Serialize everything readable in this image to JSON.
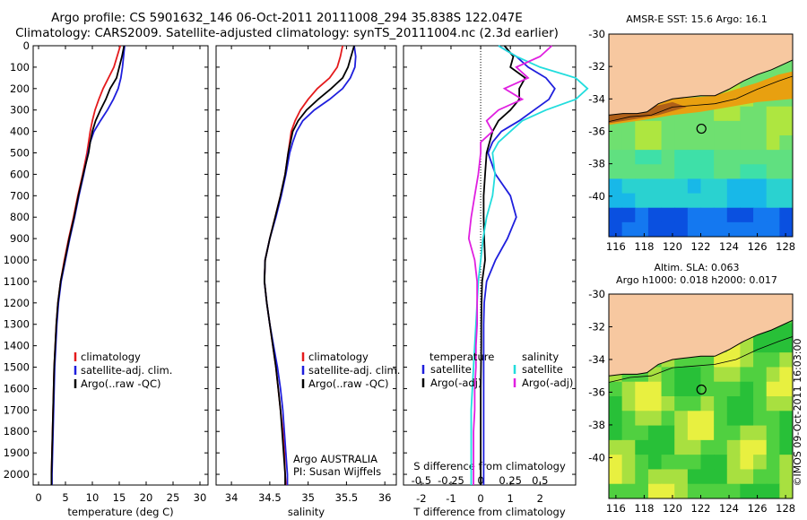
{
  "header": {
    "line1": "Argo profile: CS 5901632_146 06-Oct-2011 20111008_294 35.838S 122.047E",
    "line2": "Climatology: CARS2009. Satellite-adjusted climatology: synTS_20111004.nc (2.3d earlier)"
  },
  "colors": {
    "climatology": "#e41a1c",
    "satellite": "#1f1fdd",
    "argo": "#000000",
    "cyan": "#22dddd",
    "magenta": "#e020e0",
    "land": "#f7c8a0"
  },
  "chart_data": [
    {
      "type": "line",
      "xlabel": "temperature (deg C)",
      "ylim": [
        2050,
        0
      ],
      "xlim": [
        -1,
        31.5
      ],
      "x_ticks": [
        "0",
        "5",
        "10",
        "15",
        "20",
        "25",
        "30"
      ],
      "y_ticks": [
        "0",
        "100",
        "200",
        "300",
        "400",
        "500",
        "600",
        "700",
        "800",
        "900",
        "1000",
        "1100",
        "1200",
        "1300",
        "1400",
        "1500",
        "1600",
        "1700",
        "1800",
        "1900",
        "2000"
      ],
      "depth": [
        0,
        50,
        100,
        150,
        200,
        250,
        300,
        350,
        400,
        450,
        500,
        600,
        700,
        800,
        900,
        1000,
        1100,
        1200,
        1300,
        1400,
        1500,
        1600,
        1700,
        1800,
        1900,
        2000,
        2050
      ],
      "series": [
        {
          "name": "climatology",
          "values": [
            15.2,
            14.6,
            14.0,
            13.0,
            12.0,
            11.2,
            10.5,
            10.0,
            9.6,
            9.3,
            9.0,
            8.2,
            7.3,
            6.5,
            5.6,
            4.8,
            4.1,
            3.6,
            3.3,
            3.1,
            2.9,
            2.8,
            2.7,
            2.6,
            2.5,
            2.4,
            2.4
          ]
        },
        {
          "name": "satellite-adj. clim.",
          "values": [
            16.0,
            15.8,
            15.6,
            15.3,
            14.8,
            13.9,
            12.8,
            11.5,
            10.3,
            9.6,
            9.2,
            8.4,
            7.5,
            6.7,
            5.8,
            5.0,
            4.2,
            3.7,
            3.4,
            3.2,
            3.0,
            2.9,
            2.8,
            2.7,
            2.6,
            2.5,
            2.5
          ]
        },
        {
          "name": "Argo(..raw -QC)",
          "values": [
            15.9,
            15.5,
            15.0,
            14.5,
            13.3,
            12.5,
            11.5,
            10.6,
            10.0,
            9.6,
            9.3,
            8.3,
            7.4,
            6.6,
            5.7,
            4.9,
            4.1,
            3.6,
            3.3,
            3.1,
            2.9,
            2.8,
            2.7,
            2.6,
            2.5,
            2.4,
            2.4
          ]
        }
      ],
      "annotations": []
    },
    {
      "type": "line",
      "xlabel": "salinity",
      "ylim": [
        2050,
        0
      ],
      "xlim": [
        33.8,
        36.15
      ],
      "x_ticks": [
        "34",
        "34.5",
        "35",
        "35.5",
        "36"
      ],
      "depth": [
        0,
        50,
        100,
        150,
        200,
        250,
        300,
        350,
        400,
        450,
        500,
        600,
        700,
        800,
        900,
        1000,
        1100,
        1200,
        1300,
        1400,
        1500,
        1600,
        1700,
        1800,
        1900,
        2000,
        2050
      ],
      "series": [
        {
          "name": "climatology",
          "values": [
            35.45,
            35.42,
            35.38,
            35.28,
            35.12,
            35.0,
            34.9,
            34.83,
            34.78,
            34.76,
            34.74,
            34.7,
            34.64,
            34.57,
            34.5,
            34.44,
            34.43,
            34.46,
            34.5,
            34.54,
            34.58,
            34.61,
            34.64,
            34.67,
            34.69,
            34.7,
            34.71
          ]
        },
        {
          "name": "satellite-adj. clim.",
          "values": [
            35.6,
            35.62,
            35.61,
            35.55,
            35.45,
            35.28,
            35.08,
            34.93,
            34.85,
            34.8,
            34.76,
            34.71,
            34.65,
            34.58,
            34.5,
            34.44,
            34.43,
            34.46,
            34.5,
            34.55,
            34.6,
            34.64,
            34.67,
            34.69,
            34.71,
            34.73,
            34.73
          ]
        },
        {
          "name": "Argo(..raw -QC)",
          "values": [
            35.6,
            35.56,
            35.52,
            35.45,
            35.3,
            35.13,
            34.98,
            34.87,
            34.8,
            34.77,
            34.74,
            34.7,
            34.64,
            34.57,
            34.5,
            34.44,
            34.43,
            34.46,
            34.5,
            34.54,
            34.58,
            34.61,
            34.64,
            34.66,
            34.68,
            34.7,
            34.7
          ]
        }
      ],
      "annotations": [
        "Argo AUSTRALIA",
        "PI: Susan Wijffels"
      ]
    },
    {
      "type": "line",
      "xlabel": "T difference from climatology",
      "x2label": "S difference from climatology",
      "ylim": [
        2050,
        0
      ],
      "xlim": [
        -2.6,
        3.2
      ],
      "x_ticks": [
        "-2",
        "-1",
        "0",
        "1",
        "2"
      ],
      "x2_ticks": [
        "-0.5",
        "-0.25",
        "0",
        "0.25",
        "0.5"
      ],
      "depth": [
        0,
        50,
        100,
        150,
        200,
        250,
        300,
        350,
        400,
        450,
        500,
        600,
        700,
        800,
        900,
        1000,
        1100,
        1200,
        1300,
        1400,
        1500,
        1600,
        1700,
        1800,
        1900,
        2000,
        2050
      ],
      "legend_groups": [
        "temperature",
        "salinity"
      ],
      "series": [
        {
          "name": "satellite",
          "group": "temperature",
          "values": [
            0.6,
            1.2,
            1.6,
            2.2,
            2.5,
            2.3,
            1.8,
            1.3,
            0.7,
            0.4,
            0.25,
            0.5,
            1.0,
            1.2,
            0.9,
            0.5,
            0.2,
            0.12,
            0.1,
            0.1,
            0.1,
            0.1,
            0.1,
            0.1,
            0.1,
            0.1,
            0.1
          ]
        },
        {
          "name": "Argo(-adj)",
          "group": "temperature",
          "values": [
            0.8,
            1.1,
            1.0,
            1.5,
            1.3,
            1.3,
            1.0,
            0.6,
            0.4,
            0.3,
            0.2,
            0.15,
            0.1,
            0.1,
            0.12,
            0.15,
            0.05,
            0.03,
            0.02,
            0.02,
            0.01,
            0.0,
            0.0,
            0.0,
            0.0,
            0.0,
            0.0
          ]
        },
        {
          "name": "satellite",
          "group": "salinity",
          "values": [
            0.15,
            0.3,
            0.5,
            0.8,
            0.9,
            0.8,
            0.55,
            0.35,
            0.25,
            0.15,
            0.1,
            0.12,
            0.1,
            0.05,
            0.02,
            0.0,
            -0.02,
            -0.03,
            -0.04,
            -0.05,
            -0.06,
            -0.07,
            -0.08,
            -0.08,
            -0.08,
            -0.08,
            -0.08
          ]
        },
        {
          "name": "Argo(-adj)",
          "group": "salinity",
          "values": [
            0.6,
            0.5,
            0.3,
            0.4,
            0.2,
            0.35,
            0.15,
            0.05,
            0.1,
            0.0,
            0.0,
            -0.02,
            -0.05,
            -0.08,
            -0.1,
            -0.05,
            -0.03,
            -0.03,
            -0.03,
            -0.04,
            -0.04,
            -0.05,
            -0.05,
            -0.06,
            -0.06,
            -0.06,
            -0.06
          ]
        }
      ],
      "annotations": []
    }
  ],
  "maps": {
    "top": {
      "title": "AMSR-E SST: 15.6  Argo: 16.1",
      "lat_ticks": [
        "-30",
        "-32",
        "-34",
        "-36",
        "-38",
        "-40"
      ],
      "lon_ticks": [
        "116",
        "118",
        "120",
        "122",
        "124",
        "126",
        "128"
      ]
    },
    "bottom": {
      "title1": "Altim. SLA: 0.063",
      "title2": "Argo h1000: 0.018 h2000: 0.017",
      "lat_ticks": [
        "-30",
        "-32",
        "-34",
        "-36",
        "-38",
        "-40"
      ],
      "lon_ticks": [
        "116",
        "118",
        "120",
        "122",
        "124",
        "126",
        "128"
      ]
    }
  },
  "credit": "©IMOS 09-Oct-2011 16:03:00"
}
